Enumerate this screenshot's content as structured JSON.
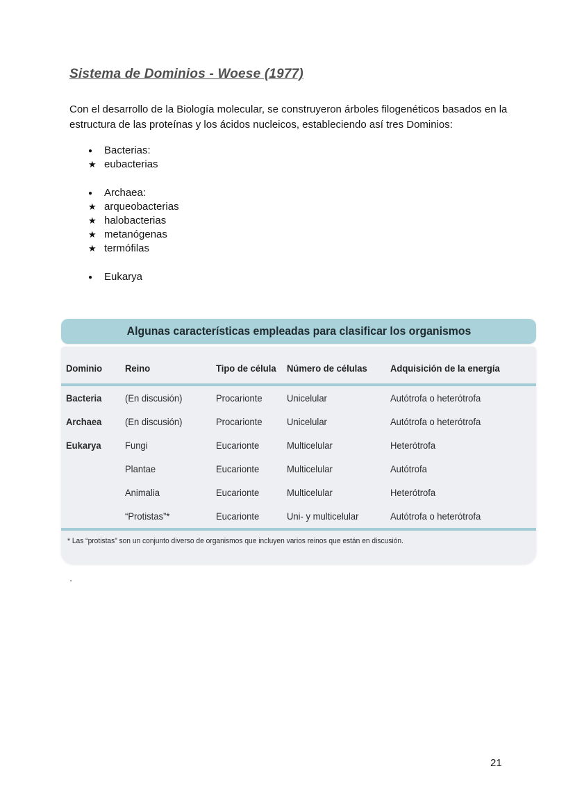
{
  "page": {
    "title": "Sistema de Dominios - Woese (1977)",
    "paragraph": "Con el desarrollo de la Biología molecular, se construyeron árboles filogenéticos basados en la estructura de las proteínas y los ácidos nucleicos, estableciendo así tres Dominios:",
    "stray_dot": ".",
    "page_number": "21"
  },
  "bullets": {
    "heading_marker": "●",
    "item_marker": "★"
  },
  "bullet_groups": [
    {
      "heading": "Bacterias:",
      "items": [
        "eubacterias"
      ]
    },
    {
      "heading": "Archaea:",
      "items": [
        "arqueobacterias",
        "halobacterias",
        "metanógenas",
        "termófilas"
      ]
    },
    {
      "heading": "Eukarya",
      "items": []
    }
  ],
  "table": {
    "title": "Algunas características empleadas para clasificar los organismos",
    "columns": [
      "Dominio",
      "Reino",
      "Tipo de célula",
      "Número de células",
      "Adquisición de la energía"
    ],
    "rows": [
      [
        "Bacteria",
        "(En discusión)",
        "Procarionte",
        "Unicelular",
        "Autótrofa o heterótrofa"
      ],
      [
        "Archaea",
        "(En discusión)",
        "Procarionte",
        "Unicelular",
        "Autótrofa o heterótrofa"
      ],
      [
        "Eukarya",
        "Fungi",
        "Eucarionte",
        "Multicelular",
        "Heterótrofa"
      ],
      [
        "",
        "Plantae",
        "Eucarionte",
        "Multicelular",
        "Autótrofa"
      ],
      [
        "",
        "Animalia",
        "Eucarionte",
        "Multicelular",
        "Heterótrofa"
      ],
      [
        "",
        "“Protistas”*",
        "Eucarionte",
        "Uni- y multicelular",
        "Autótrofa o heterótrofa"
      ]
    ],
    "footnote": "* Las “protistas” son un conjunto diverso de organismos que incluyen varios reinos que están en discusión.",
    "colors": {
      "band": "#a9d2db",
      "body_bg": "#edeff2",
      "divider": "#a3ccd6"
    }
  }
}
